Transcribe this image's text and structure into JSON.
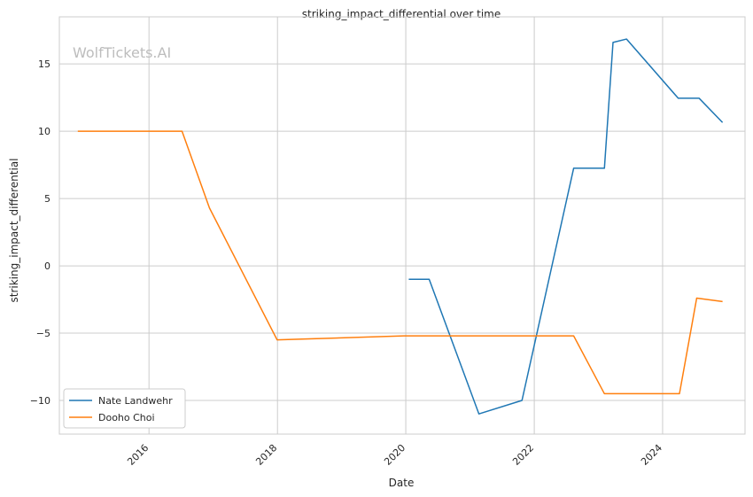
{
  "chart_data": {
    "type": "line",
    "title": "striking_impact_differential over time",
    "xlabel": "Date",
    "ylabel": "striking_impact_differential",
    "watermark": "WolfTickets.AI",
    "xlim": [
      "2014-08-09",
      "2025-04-14"
    ],
    "ylim": [
      -12.5,
      18.5
    ],
    "x_ticks": [
      "2016",
      "2018",
      "2020",
      "2022",
      "2024"
    ],
    "y_ticks": [
      -10,
      -5,
      0,
      5,
      10,
      15
    ],
    "y_tick_labels": [
      "−10",
      "−5",
      "0",
      "5",
      "10",
      "15"
    ],
    "grid": true,
    "legend_position": "lower-left",
    "series": [
      {
        "name": "Nate Landwehr",
        "color": "#1f77b4",
        "points": [
          {
            "x": "2020-01-18",
            "y": -1.0
          },
          {
            "x": "2020-05-13",
            "y": -1.0
          },
          {
            "x": "2021-02-20",
            "y": -11.0
          },
          {
            "x": "2021-10-23",
            "y": -10.0
          },
          {
            "x": "2022-08-13",
            "y": 7.25
          },
          {
            "x": "2023-02-04",
            "y": 7.25
          },
          {
            "x": "2023-03-25",
            "y": 16.6
          },
          {
            "x": "2023-06-10",
            "y": 16.85
          },
          {
            "x": "2024-03-30",
            "y": 12.45
          },
          {
            "x": "2024-07-27",
            "y": 12.45
          },
          {
            "x": "2024-12-07",
            "y": 10.65
          }
        ]
      },
      {
        "name": "Dooho Choi",
        "color": "#ff7f0e",
        "points": [
          {
            "x": "2014-11-22",
            "y": 10.0
          },
          {
            "x": "2016-07-07",
            "y": 10.0
          },
          {
            "x": "2016-12-10",
            "y": 4.3
          },
          {
            "x": "2017-12-30",
            "y": -5.5
          },
          {
            "x": "2019-12-21",
            "y": -5.2
          },
          {
            "x": "2022-08-13",
            "y": -5.2
          },
          {
            "x": "2023-02-04",
            "y": -9.5
          },
          {
            "x": "2024-04-06",
            "y": -9.5
          },
          {
            "x": "2024-07-13",
            "y": -2.4
          },
          {
            "x": "2024-12-07",
            "y": -2.65
          }
        ]
      }
    ]
  }
}
